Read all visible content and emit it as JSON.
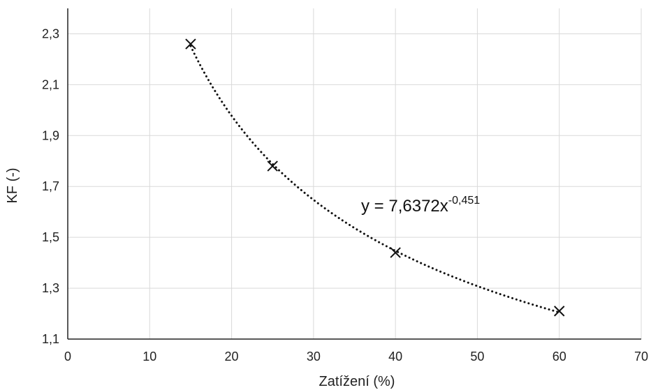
{
  "chart_data": {
    "type": "scatter",
    "title": "",
    "xlabel": "Zatížení (%)",
    "ylabel": "KF (-)",
    "xlim": [
      0,
      70
    ],
    "ylim": [
      1.1,
      2.4
    ],
    "xticks": [
      0,
      10,
      20,
      30,
      40,
      50,
      60,
      70
    ],
    "xtick_labels": [
      "0",
      "10",
      "20",
      "30",
      "40",
      "50",
      "60",
      "70"
    ],
    "yticks": [
      1.1,
      1.3,
      1.5,
      1.7,
      1.9,
      2.1,
      2.3
    ],
    "ytick_labels": [
      "1,1",
      "1,3",
      "1,5",
      "1,7",
      "1,9",
      "2,1",
      "2,3"
    ],
    "grid": true,
    "marker": "x",
    "points": [
      {
        "x": 15,
        "y": 2.26
      },
      {
        "x": 25,
        "y": 1.78
      },
      {
        "x": 40,
        "y": 1.44
      },
      {
        "x": 60,
        "y": 1.21
      }
    ],
    "trendline": {
      "type": "power",
      "a": 7.6372,
      "b": -0.451,
      "style": "dotted",
      "x_range": [
        15,
        60
      ],
      "equation": {
        "main": "y = 7,6372x",
        "exponent": "-0,451"
      }
    },
    "colors": {
      "marker": "#111111",
      "trendline": "#111111",
      "grid": "#d9d9d9",
      "axis": "#222222"
    }
  }
}
